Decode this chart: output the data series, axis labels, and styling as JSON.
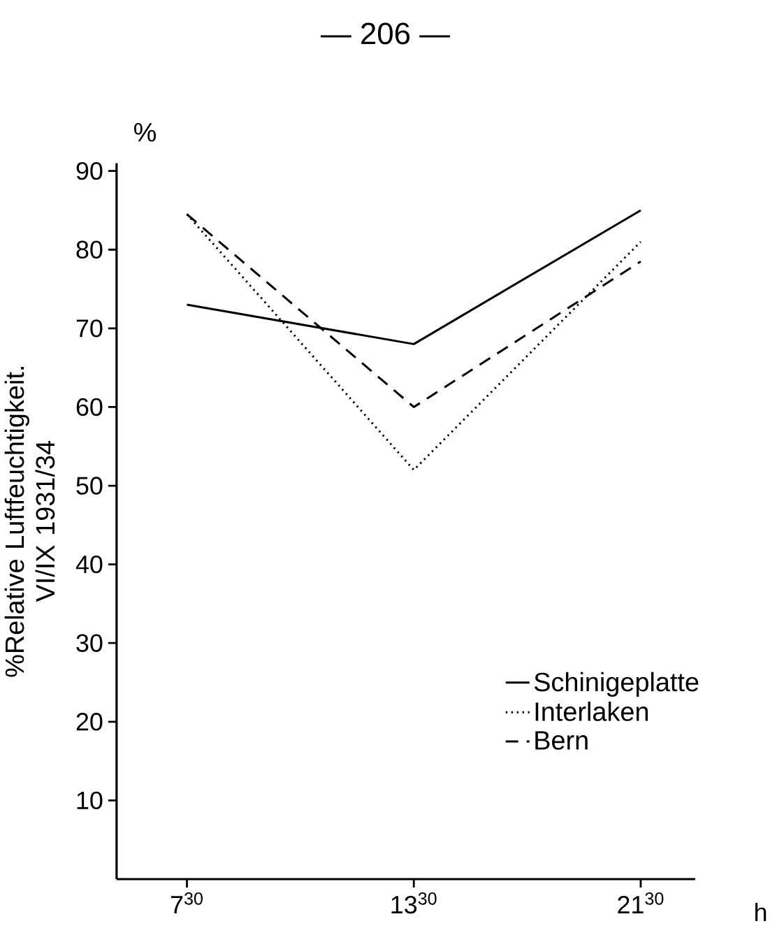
{
  "chart_data": {
    "type": "line",
    "annotations": [
      "— 206 —",
      "%"
    ],
    "ylabel": "%Relative Luftfeuchtigkeit. VI/IX 1931/34",
    "xlabel": "h",
    "categories": [
      "7$^{30}$",
      "13$^{30}$",
      "21$^{30}$"
    ],
    "ylim": [
      0,
      91
    ],
    "yticks": [
      10,
      20,
      30,
      40,
      50,
      60,
      70,
      80,
      90
    ],
    "grid": false,
    "legend": "bottom right",
    "marker": "none",
    "series": [
      {
        "name": "Schinigeplatte",
        "color": "#000000",
        "line_style": "solid",
        "values": [
          73,
          68,
          85
        ]
      },
      {
        "name": "Interlaken",
        "color": "#000000",
        "line_style": "dotted",
        "values": [
          84.5,
          52,
          81
        ]
      },
      {
        "name": "Bern",
        "color": "#000000",
        "line_style": "dashed",
        "values": [
          84.5,
          60,
          78.5
        ]
      }
    ]
  }
}
